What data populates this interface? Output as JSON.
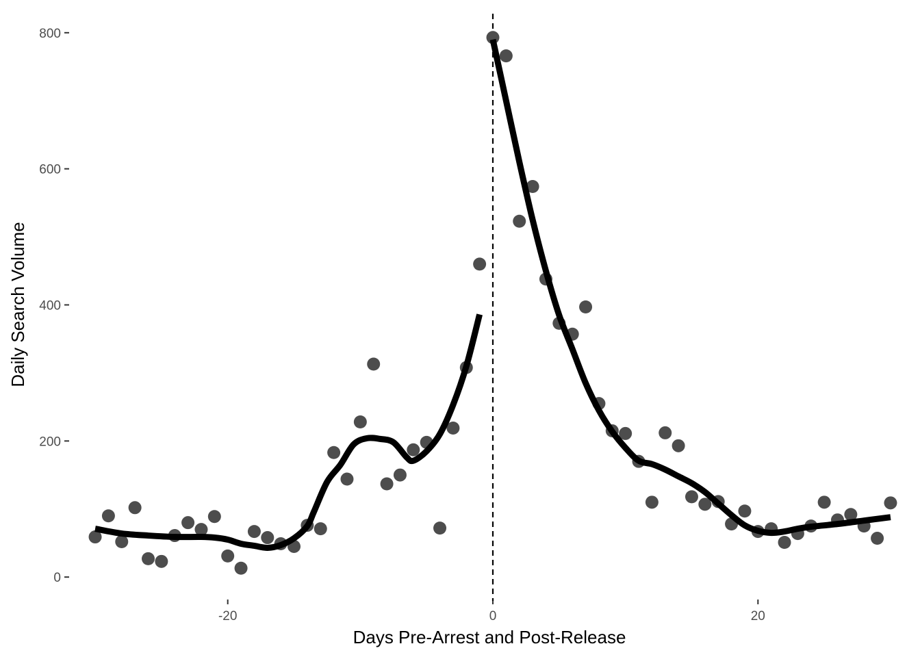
{
  "chart_data": {
    "type": "scatter",
    "title": "",
    "xlabel": "Days Pre-Arrest and Post-Release",
    "ylabel": "Daily Search Volume",
    "xlim": [
      -31.5,
      31.5
    ],
    "ylim": [
      -35,
      830
    ],
    "x_ticks": [
      -20,
      0,
      20
    ],
    "x_tick_labels": [
      "-20",
      "0",
      "20"
    ],
    "y_ticks": [
      0,
      200,
      400,
      600,
      800
    ],
    "y_tick_labels": [
      "0",
      "200",
      "400",
      "600",
      "800"
    ],
    "grid": false,
    "legend": "none",
    "reference_line": {
      "x": 0,
      "style": "dashed"
    },
    "colors": {
      "points": "#4d4d4d",
      "smooth_line": "#000000",
      "reference_line": "#000000",
      "axis_text": "#4d4d4d"
    },
    "points": [
      {
        "x": -30,
        "y": 59
      },
      {
        "x": -29,
        "y": 90
      },
      {
        "x": -28,
        "y": 52
      },
      {
        "x": -27,
        "y": 102
      },
      {
        "x": -26,
        "y": 27
      },
      {
        "x": -25,
        "y": 23
      },
      {
        "x": -24,
        "y": 61
      },
      {
        "x": -23,
        "y": 80
      },
      {
        "x": -22,
        "y": 70
      },
      {
        "x": -21,
        "y": 89
      },
      {
        "x": -20,
        "y": 31
      },
      {
        "x": -19,
        "y": 13
      },
      {
        "x": -18,
        "y": 67
      },
      {
        "x": -17,
        "y": 58
      },
      {
        "x": -16,
        "y": 49
      },
      {
        "x": -15,
        "y": 45
      },
      {
        "x": -14,
        "y": 76
      },
      {
        "x": -13,
        "y": 71
      },
      {
        "x": -12,
        "y": 183
      },
      {
        "x": -11,
        "y": 144
      },
      {
        "x": -10,
        "y": 228
      },
      {
        "x": -9,
        "y": 313
      },
      {
        "x": -8,
        "y": 137
      },
      {
        "x": -7,
        "y": 150
      },
      {
        "x": -6,
        "y": 187
      },
      {
        "x": -5,
        "y": 198
      },
      {
        "x": -4,
        "y": 72
      },
      {
        "x": -3,
        "y": 219
      },
      {
        "x": -2,
        "y": 308
      },
      {
        "x": -1,
        "y": 460
      },
      {
        "x": 0,
        "y": 793
      },
      {
        "x": 1,
        "y": 766
      },
      {
        "x": 2,
        "y": 523
      },
      {
        "x": 3,
        "y": 574
      },
      {
        "x": 4,
        "y": 438
      },
      {
        "x": 5,
        "y": 373
      },
      {
        "x": 6,
        "y": 357
      },
      {
        "x": 7,
        "y": 397
      },
      {
        "x": 8,
        "y": 255
      },
      {
        "x": 9,
        "y": 215
      },
      {
        "x": 10,
        "y": 211
      },
      {
        "x": 11,
        "y": 170
      },
      {
        "x": 12,
        "y": 110
      },
      {
        "x": 13,
        "y": 212
      },
      {
        "x": 14,
        "y": 193
      },
      {
        "x": 15,
        "y": 118
      },
      {
        "x": 16,
        "y": 107
      },
      {
        "x": 17,
        "y": 111
      },
      {
        "x": 18,
        "y": 78
      },
      {
        "x": 19,
        "y": 97
      },
      {
        "x": 20,
        "y": 67
      },
      {
        "x": 21,
        "y": 71
      },
      {
        "x": 22,
        "y": 51
      },
      {
        "x": 23,
        "y": 64
      },
      {
        "x": 24,
        "y": 75
      },
      {
        "x": 25,
        "y": 110
      },
      {
        "x": 26,
        "y": 84
      },
      {
        "x": 27,
        "y": 92
      },
      {
        "x": 28,
        "y": 75
      },
      {
        "x": 29,
        "y": 57
      },
      {
        "x": 30,
        "y": 109
      }
    ],
    "smooth_pre": [
      {
        "x": -30,
        "y": 71
      },
      {
        "x": -28,
        "y": 64
      },
      {
        "x": -26,
        "y": 61
      },
      {
        "x": -24,
        "y": 59
      },
      {
        "x": -22,
        "y": 59
      },
      {
        "x": -21,
        "y": 58
      },
      {
        "x": -20,
        "y": 55
      },
      {
        "x": -19,
        "y": 49
      },
      {
        "x": -18,
        "y": 46
      },
      {
        "x": -17,
        "y": 43
      },
      {
        "x": -16,
        "y": 47
      },
      {
        "x": -15,
        "y": 57
      },
      {
        "x": -14,
        "y": 75
      },
      {
        "x": -13.5,
        "y": 96
      },
      {
        "x": -12.5,
        "y": 140
      },
      {
        "x": -11.5,
        "y": 165
      },
      {
        "x": -10.5,
        "y": 195
      },
      {
        "x": -9.5,
        "y": 204
      },
      {
        "x": -8.5,
        "y": 203
      },
      {
        "x": -7.5,
        "y": 198
      },
      {
        "x": -6.5,
        "y": 176
      },
      {
        "x": -6,
        "y": 171
      },
      {
        "x": -5,
        "y": 185
      },
      {
        "x": -4,
        "y": 210
      },
      {
        "x": -3,
        "y": 253
      },
      {
        "x": -2,
        "y": 310
      },
      {
        "x": -1,
        "y": 386
      }
    ],
    "smooth_post": [
      {
        "x": 0,
        "y": 790
      },
      {
        "x": 1,
        "y": 700
      },
      {
        "x": 2,
        "y": 610
      },
      {
        "x": 3,
        "y": 525
      },
      {
        "x": 4,
        "y": 450
      },
      {
        "x": 5,
        "y": 385
      },
      {
        "x": 6,
        "y": 335
      },
      {
        "x": 7,
        "y": 285
      },
      {
        "x": 8,
        "y": 245
      },
      {
        "x": 9,
        "y": 214
      },
      {
        "x": 10,
        "y": 190
      },
      {
        "x": 11,
        "y": 171
      },
      {
        "x": 12,
        "y": 166
      },
      {
        "x": 13,
        "y": 158
      },
      {
        "x": 14,
        "y": 148
      },
      {
        "x": 15,
        "y": 138
      },
      {
        "x": 16,
        "y": 125
      },
      {
        "x": 17,
        "y": 108
      },
      {
        "x": 18,
        "y": 91
      },
      {
        "x": 19,
        "y": 76
      },
      {
        "x": 20,
        "y": 68
      },
      {
        "x": 21,
        "y": 65
      },
      {
        "x": 22,
        "y": 67
      },
      {
        "x": 23,
        "y": 71
      },
      {
        "x": 24,
        "y": 74
      },
      {
        "x": 26,
        "y": 78
      },
      {
        "x": 28,
        "y": 83
      },
      {
        "x": 30,
        "y": 88
      }
    ]
  }
}
